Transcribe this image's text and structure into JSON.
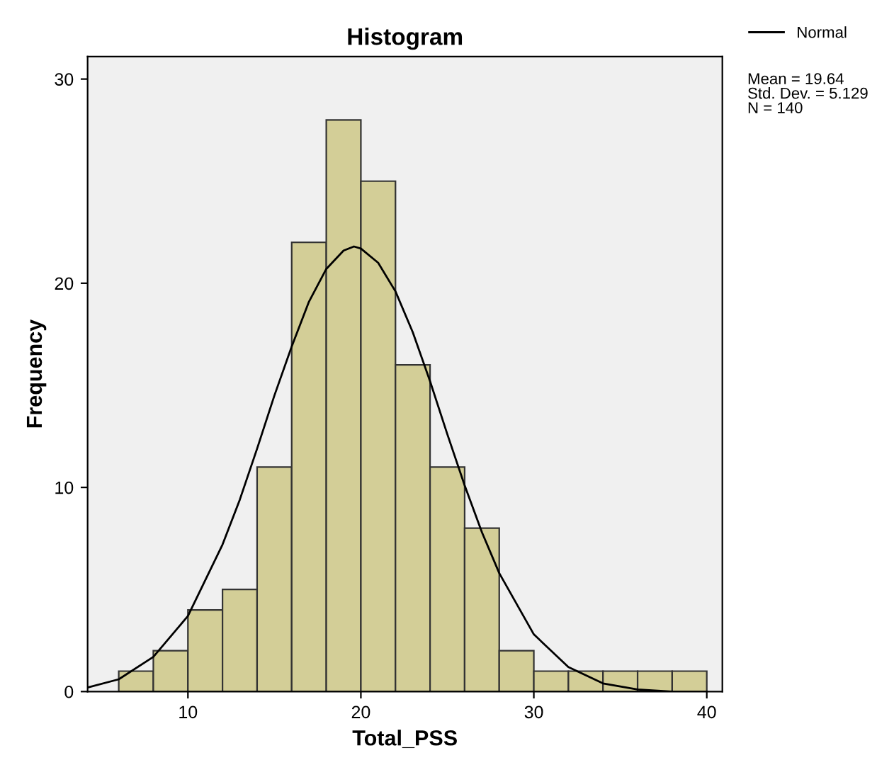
{
  "chart_data": {
    "type": "histogram",
    "title": "Histogram",
    "xlabel": "Total_PSS",
    "ylabel": "Frequency",
    "xlim": [
      4.2,
      40.9
    ],
    "ylim": [
      0,
      31.1
    ],
    "xticks": [
      10,
      20,
      30,
      40
    ],
    "yticks": [
      0,
      10,
      20,
      30
    ],
    "grid": false,
    "legend": "top right",
    "annotations": [
      "Mean = 19.64",
      "Std. Dev. = 5.129",
      "N = 140"
    ],
    "series": [
      {
        "color": "#d3ce97",
        "bins": [
          6,
          8,
          10,
          12,
          14,
          16,
          18,
          20,
          22,
          24,
          26,
          28,
          30,
          32,
          34,
          36,
          38,
          40
        ],
        "values": [
          1,
          2,
          4,
          5,
          11,
          22,
          28,
          25,
          16,
          11,
          8,
          2,
          1,
          1,
          1,
          1,
          1
        ]
      },
      {
        "type": "line",
        "name": "Normal",
        "color": "#000000",
        "x": [
          4.2,
          6,
          8,
          10,
          12,
          13,
          14,
          15,
          16,
          17,
          18,
          19,
          19.6,
          20,
          21,
          22,
          23,
          24,
          25,
          26,
          27,
          28,
          30,
          32,
          34,
          36,
          38,
          40
        ],
        "values": [
          0.2,
          0.6,
          1.7,
          3.7,
          7.2,
          9.4,
          11.9,
          14.5,
          16.9,
          19.1,
          20.7,
          21.6,
          21.8,
          21.7,
          21.0,
          19.6,
          17.6,
          15.2,
          12.6,
          10.1,
          7.8,
          5.8,
          2.8,
          1.2,
          0.4,
          0.1,
          0.0,
          0.0
        ]
      }
    ]
  }
}
